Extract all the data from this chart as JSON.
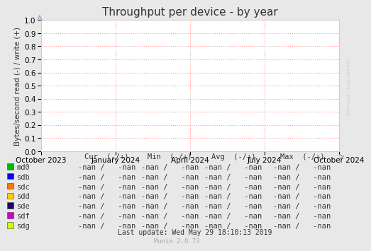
{
  "title": "Throughput per device - by year",
  "ylabel": "Bytes/second read (-) / write (+)",
  "background_color": "#e8e8e8",
  "plot_bg_color": "#ffffff",
  "grid_color": "#ff9999",
  "border_color": "#aaaaaa",
  "ylim": [
    0.0,
    1.0
  ],
  "yticks": [
    0.0,
    0.1,
    0.2,
    0.3,
    0.4,
    0.5,
    0.6,
    0.7,
    0.8,
    0.9,
    1.0
  ],
  "xtick_labels": [
    "October 2023",
    "January 2024",
    "April 2024",
    "July 2024",
    "October 2024"
  ],
  "xtick_positions": [
    0.0,
    0.25,
    0.5,
    0.75,
    1.0
  ],
  "legend_entries": [
    {
      "label": "md0",
      "color": "#00bb00"
    },
    {
      "label": "sdb",
      "color": "#0000ee"
    },
    {
      "label": "sdc",
      "color": "#ff7700"
    },
    {
      "label": "sdd",
      "color": "#ffcc00"
    },
    {
      "label": "sde",
      "color": "#220066"
    },
    {
      "label": "sdf",
      "color": "#cc00cc"
    },
    {
      "label": "sdg",
      "color": "#ccff00"
    }
  ],
  "footer_left": "Last update: Wed May 29 18:10:13 2019",
  "footer_right": "Munin 2.0.73",
  "watermark": "RRDTOOL / TOBI OETIKER",
  "title_fontsize": 11,
  "axis_fontsize": 7.5,
  "legend_fontsize": 7.5,
  "footer_fontsize": 7
}
